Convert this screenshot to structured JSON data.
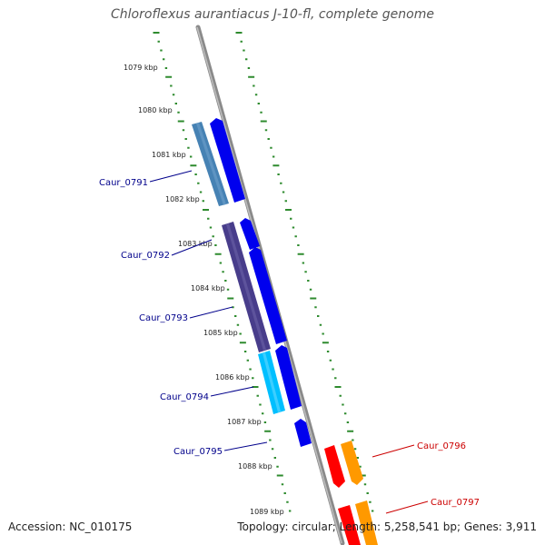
{
  "title": "Chloroflexus aurantiacus J-10-fl, complete genome",
  "footer": {
    "accession": "Accession: NC_010175",
    "summary": "Topology: circular; Length: 5,258,541 bp; Genes: 3,911"
  },
  "colors": {
    "backbone": "#808080",
    "tick": "#2e8b2e",
    "label_blue": "#00008b",
    "label_red": "#cc0000",
    "gene_blue": "#0000ee",
    "cog_steelblue": "#4682b4",
    "cog_darkslate": "#483d8b",
    "cog_cyan": "#00bfff",
    "gene_red": "#ff0000",
    "gene_orange": "#ff9900"
  },
  "kbp_labels": [
    "1079 kbp",
    "1080 kbp",
    "1081 kbp",
    "1082 kbp",
    "1083 kbp",
    "1084 kbp",
    "1085 kbp",
    "1086 kbp",
    "1087 kbp",
    "1088 kbp",
    "1089 kbp"
  ],
  "gene_labels": [
    {
      "text": "Caur_0791",
      "color": "label_blue"
    },
    {
      "text": "Caur_0792",
      "color": "label_blue"
    },
    {
      "text": "Caur_0793",
      "color": "label_blue"
    },
    {
      "text": "Caur_0794",
      "color": "label_blue"
    },
    {
      "text": "Caur_0795",
      "color": "label_blue"
    },
    {
      "text": "Caur_0796",
      "color": "label_red"
    },
    {
      "text": "Caur_0797",
      "color": "label_red"
    }
  ]
}
